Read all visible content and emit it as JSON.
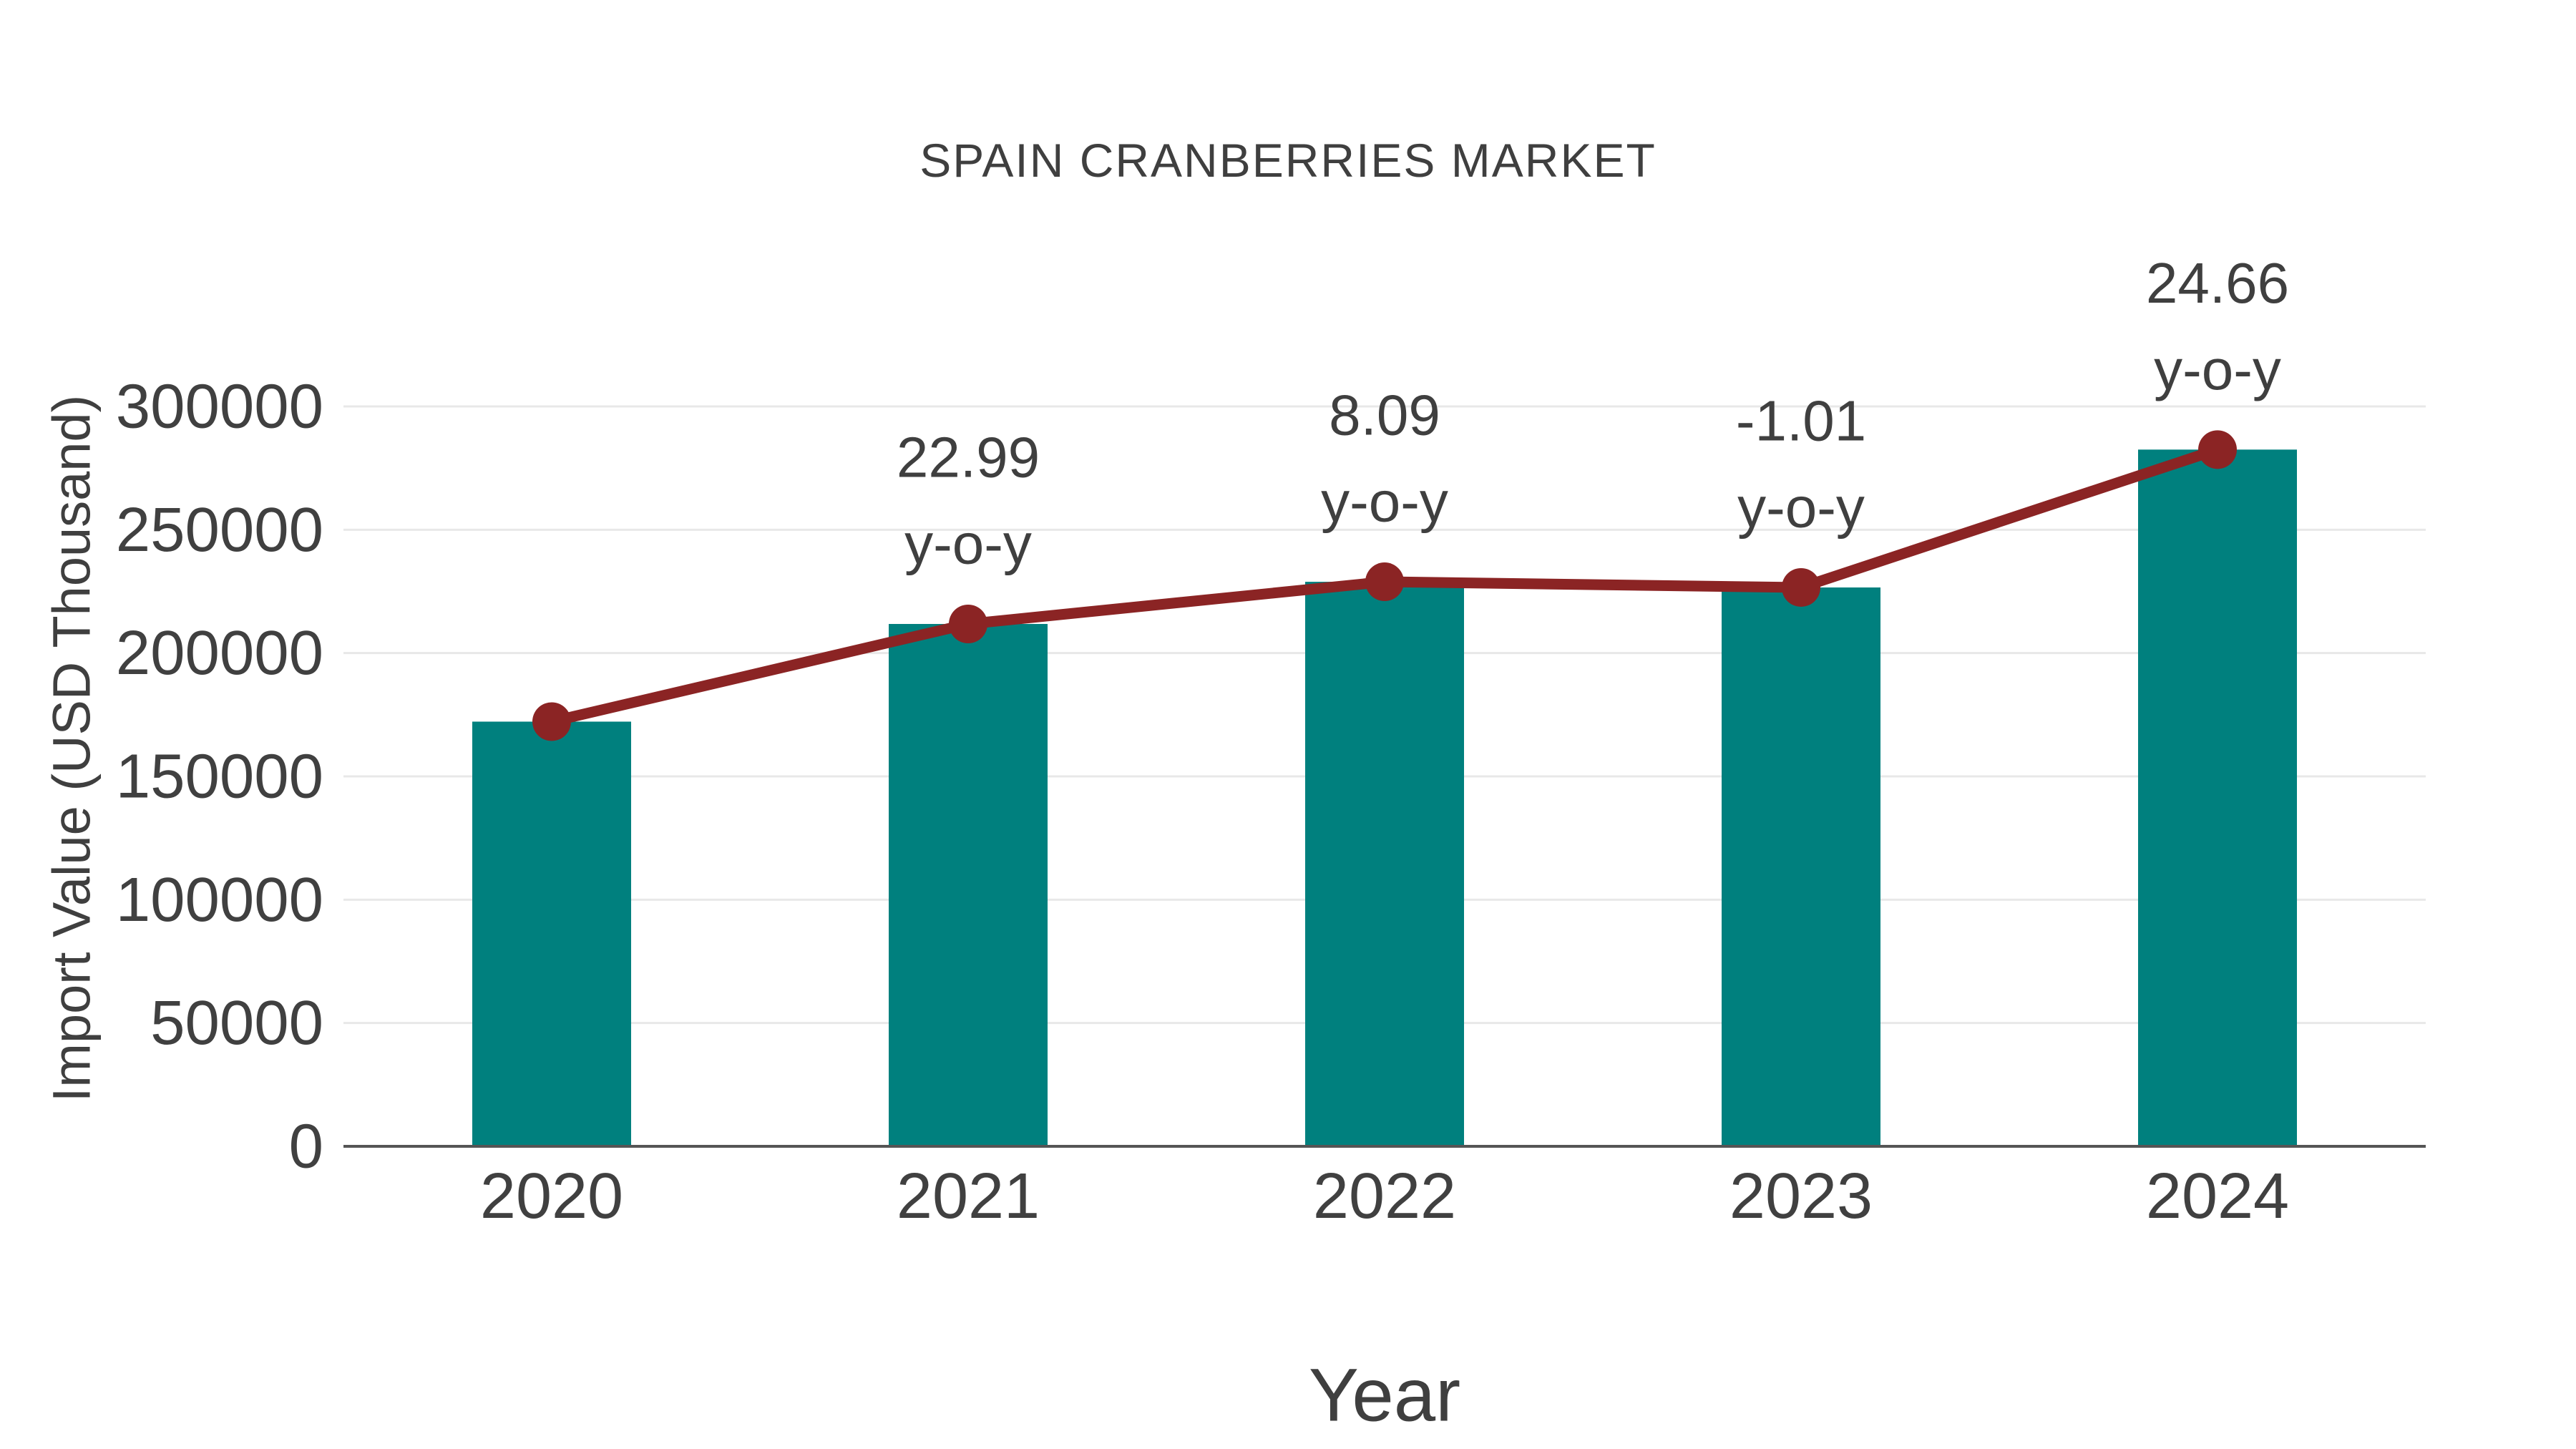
{
  "title": "SPAIN CRANBERRIES MARKET",
  "axes": {
    "x_title": "Year",
    "y_title": "Import Value (USD Thousand)"
  },
  "colors": {
    "bar": "#00807e",
    "line": "#8b2424",
    "marker": "#8b2424",
    "grid": "#e8e8e8",
    "axis": "#555555",
    "text": "#404040",
    "title_text": "#3f3f3f",
    "background": "#ffffff"
  },
  "chart_data": {
    "type": "bar",
    "title": "SPAIN CRANBERRIES MARKET",
    "xlabel": "Year",
    "ylabel": "Import Value (USD Thousand)",
    "categories": [
      "2020",
      "2021",
      "2022",
      "2023",
      "2024"
    ],
    "series": [
      {
        "name": "Import Value (USD Thousand)",
        "type": "bar",
        "values": [
          172200,
          211800,
          228900,
          226600,
          282500
        ]
      },
      {
        "name": "y-o-y change (%)",
        "type": "line",
        "plotted_on": "import value at bar tops",
        "values": [
          null,
          22.99,
          8.09,
          -1.01,
          24.66
        ]
      }
    ],
    "annotations": [
      {
        "category": "2021",
        "line1": "22.99",
        "line2": "y-o-y"
      },
      {
        "category": "2022",
        "line1": "8.09",
        "line2": "y-o-y"
      },
      {
        "category": "2023",
        "line1": "-1.01",
        "line2": "y-o-y"
      },
      {
        "category": "2024",
        "line1": "24.66",
        "line2": "y-o-y"
      }
    ],
    "ylim": [
      0,
      300000
    ],
    "yticks": [
      0,
      50000,
      100000,
      150000,
      200000,
      250000,
      300000
    ],
    "grid": "horizontal",
    "legend": "none"
  }
}
